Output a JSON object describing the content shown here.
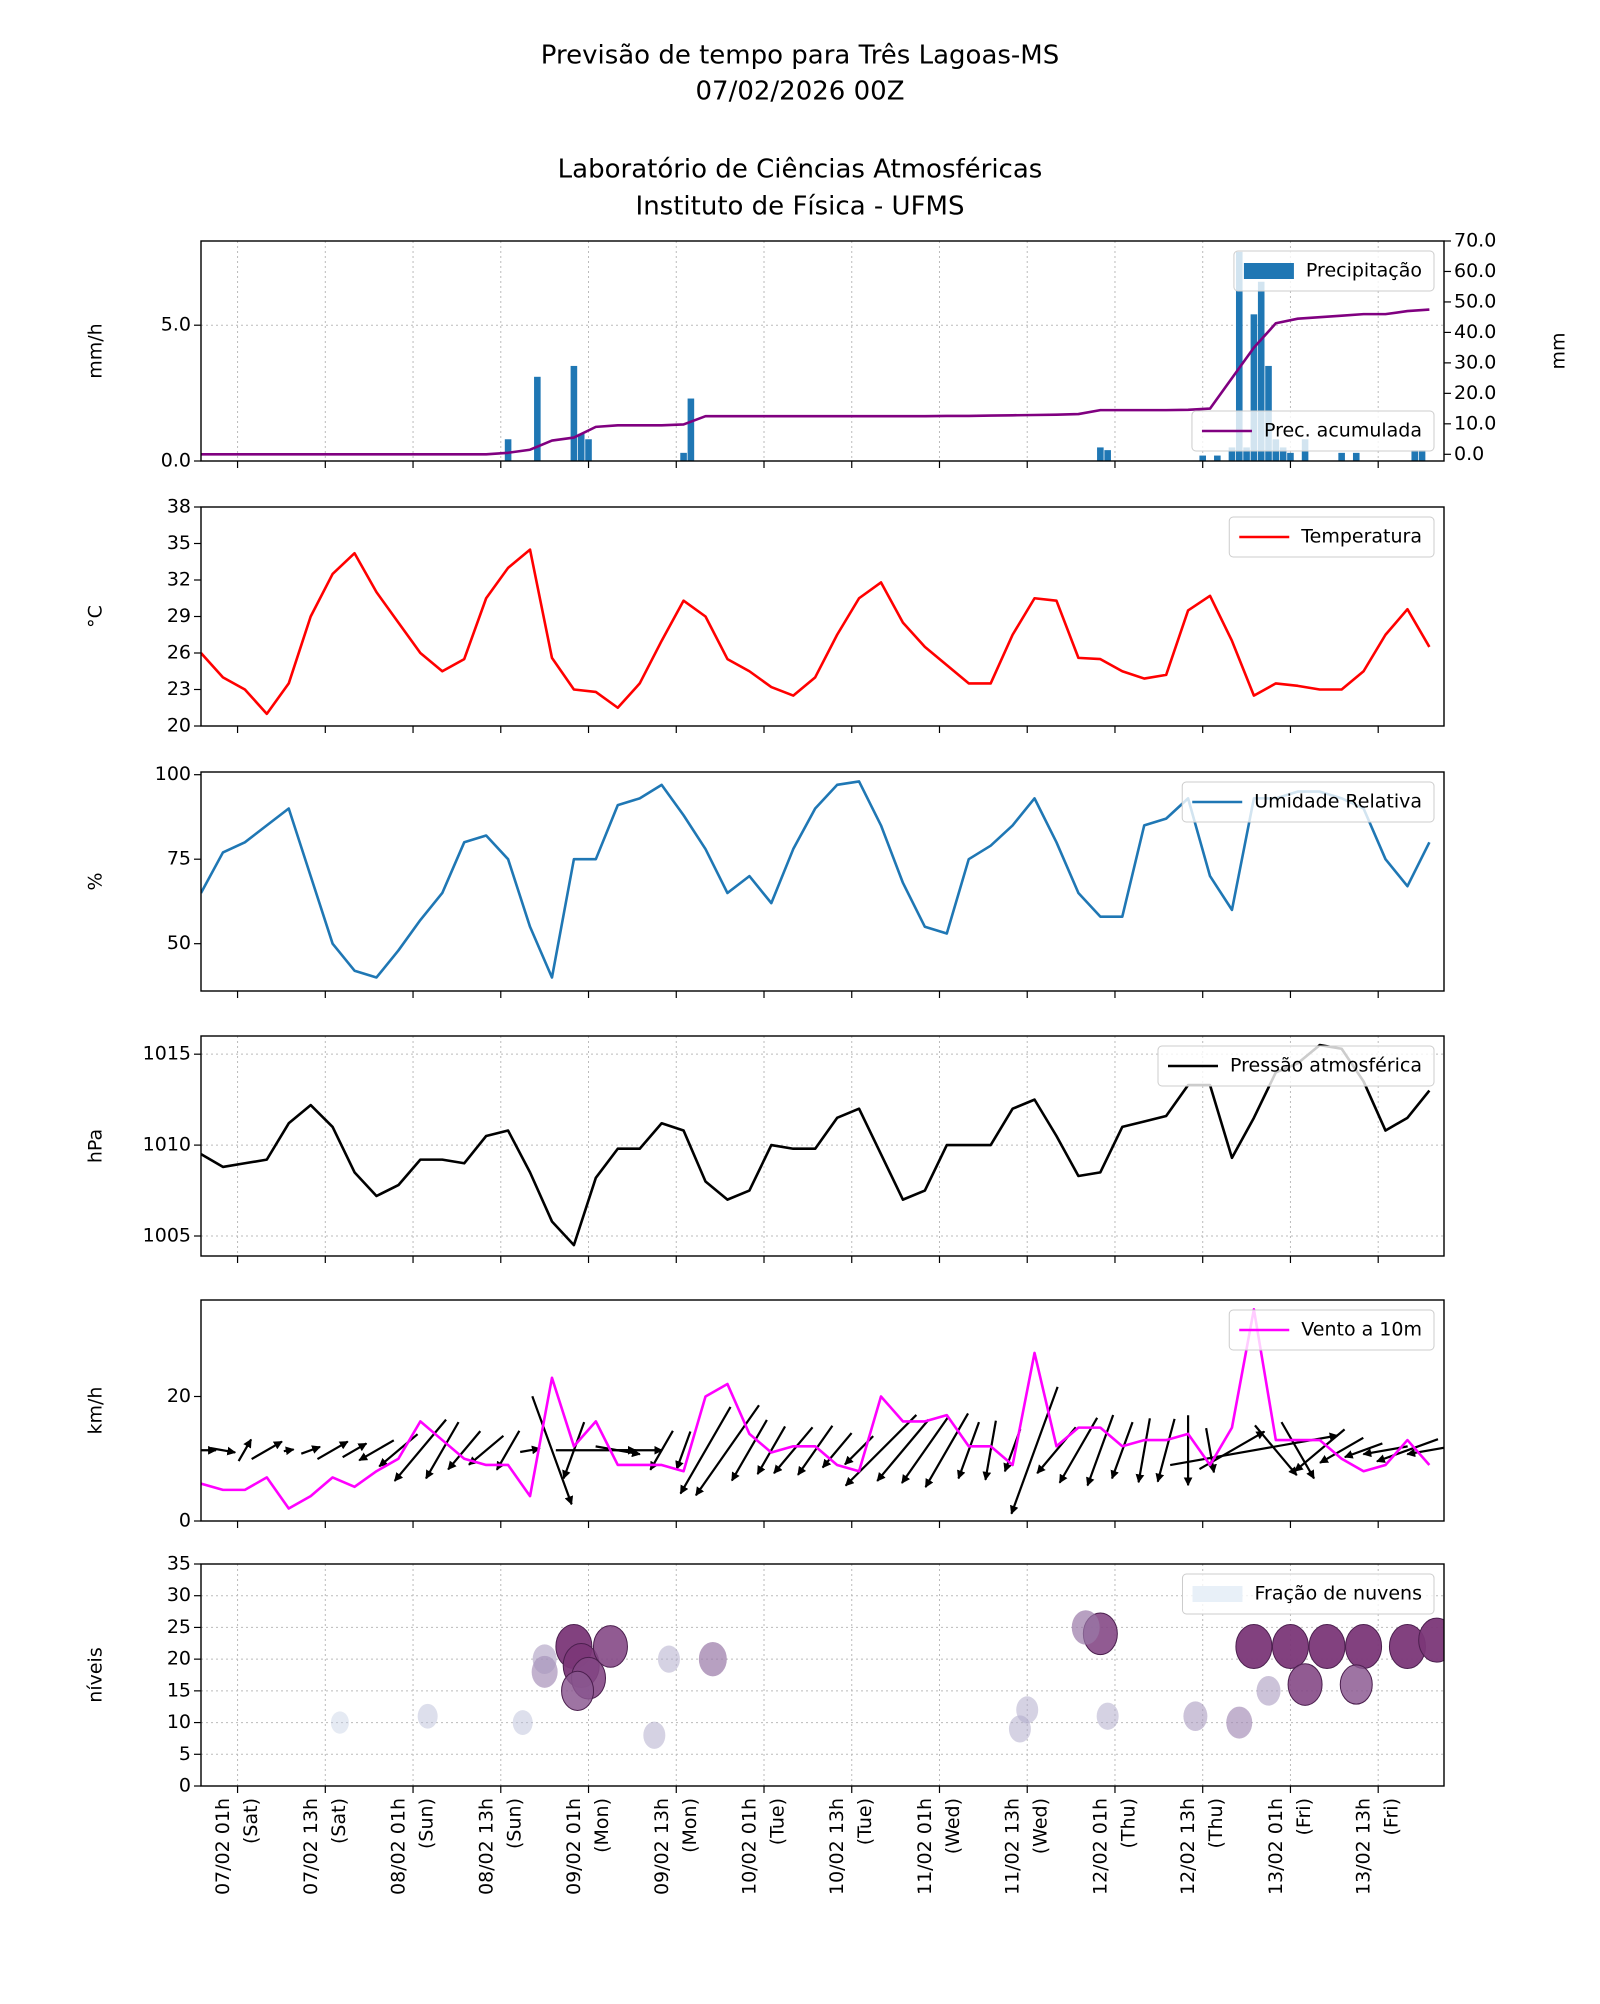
{
  "title_lines": [
    "Previsão de tempo para Três Lagoas-MS",
    "07/02/2026 00Z",
    "Laboratório de Ciências Atmosféricas",
    "Instituto de Física - UFMS"
  ],
  "xlim": [
    -4,
    166
  ],
  "xticks": [
    {
      "value": 1,
      "label": "07/02 01h"
    },
    {
      "value": 13,
      "label": "07/02 13h"
    },
    {
      "value": 25,
      "label": "08/02 01h"
    },
    {
      "value": 37,
      "label": "08/02 13h"
    },
    {
      "value": 49,
      "label": "09/02 01h"
    },
    {
      "value": 61,
      "label": "09/02 13h"
    },
    {
      "value": 73,
      "label": "10/02 01h"
    },
    {
      "value": 85,
      "label": "10/02 13h"
    },
    {
      "value": 97,
      "label": "11/02 01h"
    },
    {
      "value": 109,
      "label": "11/02 13h"
    },
    {
      "value": 121,
      "label": "12/02 01h"
    },
    {
      "value": 133,
      "label": "12/02 13h"
    },
    {
      "value": 145,
      "label": "13/02 01h"
    },
    {
      "value": 157,
      "label": "13/02 13h"
    }
  ],
  "xtick_days": [
    "(Sat)",
    "(Sat)",
    "(Sun)",
    "(Sun)",
    "(Mon)",
    "(Mon)",
    "(Tue)",
    "(Tue)",
    "(Wed)",
    "(Wed)",
    "(Thu)",
    "(Thu)",
    "(Fri)",
    "(Fri)"
  ],
  "x": [
    -4,
    -1,
    2,
    5,
    8,
    11,
    14,
    17,
    20,
    23,
    26,
    29,
    32,
    35,
    38,
    41,
    44,
    47,
    50,
    53,
    56,
    59,
    62,
    65,
    68,
    71,
    74,
    77,
    80,
    83,
    86,
    89,
    92,
    95,
    98,
    101,
    104,
    107,
    110,
    113,
    116,
    119,
    122,
    125,
    128,
    131,
    134,
    137,
    140,
    143,
    146,
    149,
    152,
    155,
    158,
    161,
    164
  ],
  "chart_data": [
    {
      "type": "bar_line",
      "ylabel": "mm/h",
      "y2label": "mm",
      "grid": true,
      "ylim": [
        0,
        8.1
      ],
      "yticks": [
        {
          "value": 0,
          "label": "0.0"
        },
        {
          "value": 5,
          "label": "5.0"
        }
      ],
      "y2lim": [
        -2.2,
        70
      ],
      "y2ticks": [
        {
          "value": 0,
          "label": "0.0"
        },
        {
          "value": 10,
          "label": "10.0"
        },
        {
          "value": 20,
          "label": "20.0"
        },
        {
          "value": 30,
          "label": "30.0"
        },
        {
          "value": 40,
          "label": "40.0"
        },
        {
          "value": 50,
          "label": "50.0"
        },
        {
          "value": 60,
          "label": "60.0"
        },
        {
          "value": 70,
          "label": "70.0"
        }
      ],
      "series": [
        {
          "name": "Precipitação",
          "kind": "bar",
          "color": "#1f77b4",
          "legend": "upper right",
          "x": [
            38,
            42,
            47,
            48,
            49,
            62,
            63,
            119,
            120,
            133,
            135,
            137,
            138,
            139,
            140,
            141,
            142,
            143,
            144,
            145,
            147,
            152,
            154,
            162,
            163
          ],
          "values": [
            0.8,
            3.1,
            3.5,
            1.0,
            0.8,
            0.3,
            2.3,
            0.5,
            0.4,
            0.2,
            0.2,
            0.5,
            7.7,
            0.5,
            5.4,
            6.6,
            3.5,
            0.8,
            0.5,
            0.3,
            0.8,
            0.3,
            0.3,
            0.4,
            0.4
          ]
        },
        {
          "name": "Prec. acumulada",
          "kind": "line",
          "axis": "y2",
          "color": "#800080",
          "legend": "lower right",
          "values": [
            0,
            0,
            0,
            0,
            0,
            0,
            0,
            0,
            0,
            0,
            0,
            0,
            0,
            0,
            0.5,
            1.5,
            4.5,
            5.5,
            9,
            9.5,
            9.5,
            9.5,
            9.8,
            12.5,
            12.5,
            12.5,
            12.5,
            12.5,
            12.5,
            12.5,
            12.5,
            12.5,
            12.5,
            12.5,
            12.6,
            12.6,
            12.7,
            12.8,
            12.9,
            13,
            13.2,
            14.5,
            14.5,
            14.5,
            14.5,
            14.6,
            15,
            25,
            35,
            43,
            44.5,
            45,
            45.5,
            46,
            46,
            47,
            47.5
          ]
        }
      ]
    },
    {
      "type": "line",
      "ylabel": "°C",
      "grid": false,
      "ylim": [
        20,
        38
      ],
      "yticks": [
        20,
        23,
        26,
        29,
        32,
        35,
        38
      ],
      "series": [
        {
          "name": "Temperatura",
          "kind": "line",
          "color": "#ff0000",
          "legend": "upper right",
          "values": [
            26,
            24,
            23,
            21,
            23.5,
            29,
            32.5,
            34.2,
            31,
            28.5,
            26,
            24.5,
            25.5,
            30.5,
            33,
            34.5,
            25.6,
            23,
            22.8,
            21.5,
            23.5,
            27,
            30.3,
            29,
            25.5,
            24.5,
            23.2,
            22.5,
            24,
            27.5,
            30.5,
            31.8,
            28.5,
            26.5,
            25,
            23.5,
            23.5,
            27.5,
            30.5,
            30.3,
            25.6,
            25.5,
            24.5,
            23.9,
            24.2,
            29.5,
            30.7,
            27,
            22.5,
            23.5,
            23.3,
            23,
            23,
            24.5,
            27.5,
            29.6,
            26.5
          ]
        }
      ]
    },
    {
      "type": "line",
      "ylabel": "%",
      "grid": false,
      "ylim": [
        36,
        100.8
      ],
      "yticks": [
        50,
        75,
        100
      ],
      "series": [
        {
          "name": "Umidade Relativa",
          "kind": "line",
          "color": "#1f77b4",
          "legend": "upper right",
          "values": [
            65,
            77,
            80,
            85,
            90,
            70,
            50,
            42,
            40,
            48,
            57,
            65,
            80,
            82,
            75,
            55,
            40,
            75,
            75,
            91,
            93,
            97,
            88,
            78,
            65,
            70,
            62,
            78,
            90,
            97,
            98,
            85,
            68,
            55,
            53,
            75,
            79,
            85,
            93,
            80,
            65,
            58,
            58,
            85,
            87,
            93,
            70,
            60,
            93,
            93,
            95,
            95,
            93,
            90,
            75,
            67,
            80
          ]
        }
      ]
    },
    {
      "type": "line",
      "ylabel": "hPa",
      "grid": true,
      "ylim": [
        1003.9,
        1016
      ],
      "yticks": [
        1005,
        1010,
        1015
      ],
      "series": [
        {
          "name": "Pressão atmosférica",
          "kind": "line",
          "color": "#000000",
          "legend": "upper right",
          "values": [
            1009.5,
            1008.8,
            1009,
            1009.2,
            1011.2,
            1012.2,
            1011,
            1008.5,
            1007.2,
            1007.8,
            1009.2,
            1009.2,
            1009,
            1010.5,
            1010.8,
            1008.5,
            1005.8,
            1004.5,
            1008.2,
            1009.8,
            1009.8,
            1011.2,
            1010.8,
            1008,
            1007,
            1007.5,
            1010,
            1009.8,
            1009.8,
            1011.5,
            1012,
            1009.5,
            1007,
            1007.5,
            1010,
            1010,
            1010,
            1012,
            1012.5,
            1010.5,
            1008.3,
            1008.5,
            1011,
            1011.3,
            1011.6,
            1013.3,
            1013.3,
            1009.3,
            1011.5,
            1014,
            1014.5,
            1015.5,
            1015.3,
            1013.5,
            1010.8,
            1011.5,
            1013
          ]
        }
      ]
    },
    {
      "type": "line_quiver",
      "ylabel": "km/h",
      "grid": false,
      "ylim": [
        0,
        35.5
      ],
      "yticks": [
        0,
        20
      ],
      "series": [
        {
          "name": "Vento a 10m",
          "kind": "line",
          "color": "#ff00ff",
          "legend": "upper right",
          "values": [
            6,
            5,
            5,
            7,
            2,
            4,
            7,
            5.5,
            8,
            10,
            16,
            13,
            10,
            9,
            9,
            4,
            23,
            12,
            16,
            9,
            9,
            9,
            8,
            20,
            22,
            14,
            11,
            12,
            12,
            9,
            8,
            20,
            16,
            16,
            17,
            12,
            12,
            9,
            27,
            12,
            15,
            15,
            12,
            13,
            13,
            14,
            9,
            15,
            34,
            13,
            13,
            13,
            10,
            8,
            9,
            13,
            9
          ]
        }
      ],
      "arrow_dir": [
        90,
        100,
        30,
        60,
        80,
        70,
        60,
        60,
        240,
        230,
        220,
        210,
        220,
        230,
        210,
        80,
        160,
        200,
        90,
        100,
        90,
        210,
        200,
        210,
        215,
        210,
        210,
        220,
        215,
        220,
        225,
        225,
        220,
        215,
        210,
        200,
        190,
        200,
        200,
        220,
        210,
        200,
        200,
        190,
        195,
        180,
        170,
        60,
        80,
        140,
        150,
        230,
        240,
        250,
        260,
        250,
        260
      ]
    },
    {
      "type": "contour",
      "ylabel": "níveis",
      "grid": true,
      "ylim": [
        0,
        35
      ],
      "yticks": [
        0,
        5,
        10,
        15,
        20,
        25,
        30,
        35
      ],
      "series": [
        {
          "name": "Fração de nuvens",
          "kind": "cells",
          "color": "#e8f0f8",
          "legend": "upper right",
          "cells": [
            {
              "x": 47,
              "y": 22,
              "value": 1
            },
            {
              "x": 48,
              "y": 19,
              "value": 1
            },
            {
              "x": 49,
              "y": 17,
              "value": 0.9
            },
            {
              "x": 47.5,
              "y": 15,
              "value": 0.8
            },
            {
              "x": 52,
              "y": 22,
              "value": 0.9
            },
            {
              "x": 43,
              "y": 18,
              "value": 0.5
            },
            {
              "x": 43,
              "y": 20,
              "value": 0.4
            },
            {
              "x": 66,
              "y": 20,
              "value": 0.6
            },
            {
              "x": 60,
              "y": 20,
              "value": 0.3
            },
            {
              "x": 109,
              "y": 12,
              "value": 0.3
            },
            {
              "x": 119,
              "y": 24,
              "value": 0.9
            },
            {
              "x": 117,
              "y": 25,
              "value": 0.6
            },
            {
              "x": 140,
              "y": 22,
              "value": 1
            },
            {
              "x": 145,
              "y": 22,
              "value": 1
            },
            {
              "x": 150,
              "y": 22,
              "value": 1
            },
            {
              "x": 155,
              "y": 22,
              "value": 1
            },
            {
              "x": 161,
              "y": 22,
              "value": 1
            },
            {
              "x": 165,
              "y": 23,
              "value": 1
            },
            {
              "x": 147,
              "y": 16,
              "value": 0.9
            },
            {
              "x": 154,
              "y": 16,
              "value": 0.8
            },
            {
              "x": 142,
              "y": 15,
              "value": 0.4
            },
            {
              "x": 138,
              "y": 10,
              "value": 0.5
            },
            {
              "x": 132,
              "y": 11,
              "value": 0.4
            },
            {
              "x": 120,
              "y": 11,
              "value": 0.3
            },
            {
              "x": 108,
              "y": 9,
              "value": 0.3
            },
            {
              "x": 40,
              "y": 10,
              "value": 0.2
            },
            {
              "x": 58,
              "y": 8,
              "value": 0.3
            },
            {
              "x": 27,
              "y": 11,
              "value": 0.2
            },
            {
              "x": 15,
              "y": 10,
              "value": 0.1
            }
          ]
        }
      ]
    }
  ]
}
